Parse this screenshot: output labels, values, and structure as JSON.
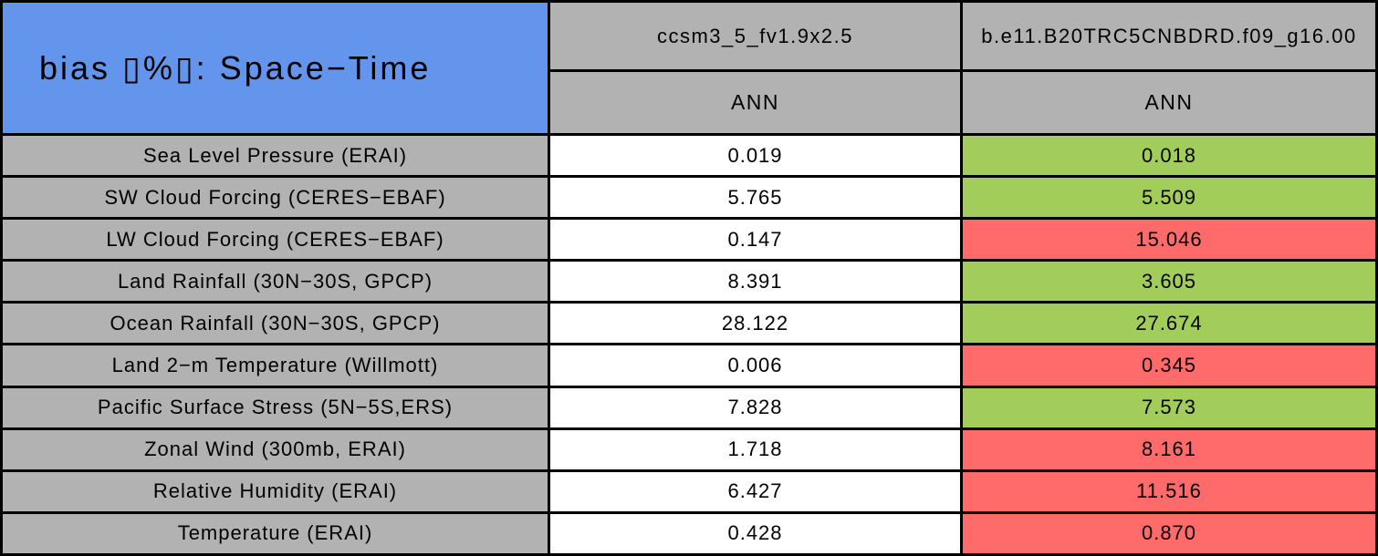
{
  "title": {
    "text": "bias ▯%▯: Space−Time"
  },
  "columns": [
    {
      "model": "ccsm3_5_fv1.9x2.5",
      "season": "ANN"
    },
    {
      "model": "b.e11.B20TRC5CNBDRD.f09_g16.00",
      "season": "ANN"
    }
  ],
  "rows": [
    {
      "label": "Sea Level Pressure (ERAI)",
      "v1": "0.019",
      "v2": "0.018",
      "highlight": "green"
    },
    {
      "label": "SW Cloud Forcing (CERES−EBAF)",
      "v1": "5.765",
      "v2": "5.509",
      "highlight": "green"
    },
    {
      "label": "LW Cloud Forcing (CERES−EBAF)",
      "v1": "0.147",
      "v2": "15.046",
      "highlight": "red"
    },
    {
      "label": "Land Rainfall (30N−30S, GPCP)",
      "v1": "8.391",
      "v2": "3.605",
      "highlight": "green"
    },
    {
      "label": "Ocean Rainfall (30N−30S, GPCP)",
      "v1": "28.122",
      "v2": "27.674",
      "highlight": "green"
    },
    {
      "label": "Land 2−m Temperature (Willmott)",
      "v1": "0.006",
      "v2": "0.345",
      "highlight": "red"
    },
    {
      "label": "Pacific Surface Stress (5N−5S,ERS)",
      "v1": "7.828",
      "v2": "7.573",
      "highlight": "green"
    },
    {
      "label": "Zonal Wind (300mb, ERAI)",
      "v1": "1.718",
      "v2": "8.161",
      "highlight": "red"
    },
    {
      "label": "Relative Humidity (ERAI)",
      "v1": "6.427",
      "v2": "11.516",
      "highlight": "red"
    },
    {
      "label": "Temperature (ERAI)",
      "v1": "0.428",
      "v2": "0.870",
      "highlight": "red"
    }
  ],
  "colors": {
    "title_blue": "#6495ED",
    "header_gray": "#B2B2B2",
    "better_green": "#A2CD5A",
    "worse_red": "#FF6A6A",
    "cell_white": "#FFFFFF",
    "grid_black": "#000000"
  },
  "chart_data": {
    "type": "table",
    "title": "bias ▯%▯: Space−Time",
    "columns": [
      "ccsm3_5_fv1.9x2.5 (ANN)",
      "b.e11.B20TRC5CNBDRD.f09_g16.00 (ANN)"
    ],
    "row_labels": [
      "Sea Level Pressure (ERAI)",
      "SW Cloud Forcing (CERES−EBAF)",
      "LW Cloud Forcing (CERES−EBAF)",
      "Land Rainfall (30N−30S, GPCP)",
      "Ocean Rainfall (30N−30S, GPCP)",
      "Land 2−m Temperature (Willmott)",
      "Pacific Surface Stress (5N−5S,ERS)",
      "Zonal Wind (300mb, ERAI)",
      "Relative Humidity (ERAI)",
      "Temperature (ERAI)"
    ],
    "series": [
      {
        "name": "ccsm3_5_fv1.9x2.5",
        "values": [
          0.019,
          5.765,
          0.147,
          8.391,
          28.122,
          0.006,
          7.828,
          1.718,
          6.427,
          0.428
        ]
      },
      {
        "name": "b.e11.B20TRC5CNBDRD.f09_g16.00",
        "values": [
          0.018,
          5.509,
          15.046,
          3.605,
          27.674,
          0.345,
          7.573,
          8.161,
          11.516,
          0.87
        ]
      }
    ],
    "second_series_cell_colors": [
      "green",
      "green",
      "red",
      "green",
      "green",
      "red",
      "green",
      "red",
      "red",
      "red"
    ]
  }
}
